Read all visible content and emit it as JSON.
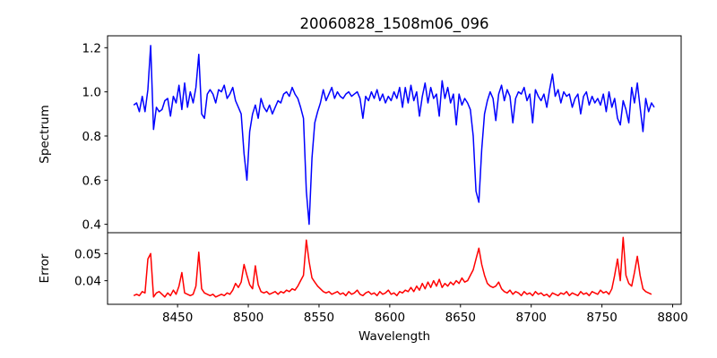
{
  "chart_data": [
    {
      "type": "line",
      "title": "20060828_1508m06_096",
      "xlabel": "",
      "ylabel": "Spectrum",
      "xlim": [
        8400.5,
        8806
      ],
      "ylim": [
        0.362,
        1.254
      ],
      "xticks": [],
      "yticks": [
        0.4,
        0.6,
        0.8,
        1.0,
        1.2
      ],
      "ytick_labels": [
        "0.4",
        "0.6",
        "0.8",
        "1.0",
        "1.2"
      ],
      "grid": false,
      "series": [
        {
          "name": "spectrum",
          "color": "#0000ff",
          "x_start": 8419,
          "x_step": 2,
          "values": [
            0.94,
            0.95,
            0.91,
            0.98,
            0.91,
            1.01,
            1.21,
            0.83,
            0.93,
            0.91,
            0.92,
            0.96,
            0.97,
            0.89,
            0.98,
            0.95,
            1.03,
            0.92,
            1.04,
            0.93,
            1.0,
            0.95,
            1.02,
            1.17,
            0.9,
            0.88,
            0.99,
            1.01,
            0.99,
            0.95,
            1.01,
            1.0,
            1.03,
            0.97,
            0.99,
            1.02,
            0.96,
            0.93,
            0.9,
            0.72,
            0.6,
            0.82,
            0.9,
            0.94,
            0.88,
            0.97,
            0.93,
            0.91,
            0.94,
            0.9,
            0.93,
            0.96,
            0.95,
            0.99,
            1.0,
            0.98,
            1.02,
            0.99,
            0.97,
            0.93,
            0.88,
            0.55,
            0.4,
            0.7,
            0.86,
            0.91,
            0.95,
            1.01,
            0.96,
            0.99,
            1.02,
            0.97,
            1.0,
            0.98,
            0.97,
            0.99,
            1.0,
            0.98,
            0.99,
            1.0,
            0.97,
            0.88,
            0.98,
            0.96,
            1.0,
            0.97,
            1.01,
            0.96,
            0.99,
            0.95,
            0.98,
            0.96,
            1.0,
            0.97,
            1.02,
            0.93,
            1.02,
            0.95,
            1.03,
            0.96,
            1.0,
            0.89,
            0.98,
            1.04,
            0.95,
            1.02,
            0.97,
            0.99,
            0.89,
            1.05,
            0.97,
            1.02,
            0.95,
            0.99,
            0.85,
            0.99,
            0.94,
            0.97,
            0.95,
            0.92,
            0.8,
            0.55,
            0.5,
            0.74,
            0.9,
            0.96,
            1.0,
            0.97,
            0.87,
            0.99,
            1.03,
            0.96,
            1.01,
            0.98,
            0.86,
            0.97,
            1.0,
            0.99,
            1.02,
            0.96,
            0.99,
            0.86,
            1.01,
            0.98,
            0.96,
            0.99,
            0.93,
            1.01,
            1.08,
            0.98,
            1.01,
            0.95,
            1.0,
            0.98,
            0.99,
            0.93,
            0.97,
            0.99,
            0.9,
            0.98,
            1.0,
            0.94,
            0.98,
            0.95,
            0.97,
            0.94,
            0.99,
            0.91,
            1.0,
            0.93,
            0.97,
            0.88,
            0.85,
            0.96,
            0.92,
            0.86,
            1.02,
            0.95,
            1.04,
            0.93,
            0.82,
            0.97,
            0.91,
            0.95,
            0.93
          ]
        }
      ]
    },
    {
      "type": "line",
      "title": "",
      "xlabel": "Wavelength",
      "ylabel": "Error",
      "xlim": [
        8400.5,
        8806
      ],
      "ylim": [
        0.0313,
        0.0577
      ],
      "xticks": [
        8450,
        8500,
        8550,
        8600,
        8650,
        8700,
        8750,
        8800
      ],
      "xtick_labels": [
        "8450",
        "8500",
        "8550",
        "8600",
        "8650",
        "8700",
        "8750",
        "8800"
      ],
      "yticks": [
        0.04,
        0.05
      ],
      "ytick_labels": [
        "0.04",
        "0.05"
      ],
      "grid": false,
      "series": [
        {
          "name": "error",
          "color": "#ff0000",
          "x_start": 8419,
          "x_step": 2,
          "values": [
            0.0345,
            0.035,
            0.0345,
            0.036,
            0.0355,
            0.048,
            0.05,
            0.034,
            0.0355,
            0.036,
            0.035,
            0.034,
            0.0355,
            0.0345,
            0.0365,
            0.035,
            0.038,
            0.043,
            0.0355,
            0.035,
            0.0345,
            0.035,
            0.038,
            0.0505,
            0.037,
            0.0355,
            0.035,
            0.0345,
            0.035,
            0.034,
            0.0345,
            0.035,
            0.0345,
            0.0355,
            0.035,
            0.0365,
            0.039,
            0.0375,
            0.0395,
            0.046,
            0.042,
            0.0385,
            0.037,
            0.0455,
            0.0385,
            0.036,
            0.0355,
            0.036,
            0.035,
            0.0355,
            0.036,
            0.035,
            0.036,
            0.0355,
            0.0365,
            0.036,
            0.037,
            0.0365,
            0.038,
            0.04,
            0.042,
            0.055,
            0.047,
            0.041,
            0.0395,
            0.038,
            0.037,
            0.036,
            0.0355,
            0.036,
            0.035,
            0.0355,
            0.036,
            0.035,
            0.0355,
            0.0345,
            0.036,
            0.035,
            0.0355,
            0.0365,
            0.035,
            0.0345,
            0.0355,
            0.036,
            0.035,
            0.0355,
            0.0345,
            0.036,
            0.035,
            0.0355,
            0.0365,
            0.035,
            0.0355,
            0.0345,
            0.036,
            0.0355,
            0.0365,
            0.036,
            0.0375,
            0.036,
            0.038,
            0.0365,
            0.039,
            0.037,
            0.0395,
            0.0375,
            0.04,
            0.038,
            0.0405,
            0.0375,
            0.039,
            0.038,
            0.0395,
            0.0385,
            0.04,
            0.039,
            0.041,
            0.0395,
            0.04,
            0.042,
            0.044,
            0.048,
            0.052,
            0.046,
            0.042,
            0.039,
            0.038,
            0.0375,
            0.038,
            0.0395,
            0.037,
            0.036,
            0.0355,
            0.0365,
            0.035,
            0.036,
            0.0355,
            0.0345,
            0.036,
            0.035,
            0.0355,
            0.0345,
            0.036,
            0.035,
            0.0355,
            0.0345,
            0.035,
            0.034,
            0.0355,
            0.035,
            0.0345,
            0.0355,
            0.035,
            0.036,
            0.0345,
            0.0355,
            0.035,
            0.0345,
            0.036,
            0.035,
            0.0355,
            0.0345,
            0.036,
            0.0355,
            0.035,
            0.0365,
            0.0355,
            0.036,
            0.035,
            0.037,
            0.042,
            0.048,
            0.04,
            0.056,
            0.042,
            0.039,
            0.038,
            0.043,
            0.049,
            0.042,
            0.037,
            0.036,
            0.0355,
            0.035
          ]
        }
      ]
    }
  ]
}
